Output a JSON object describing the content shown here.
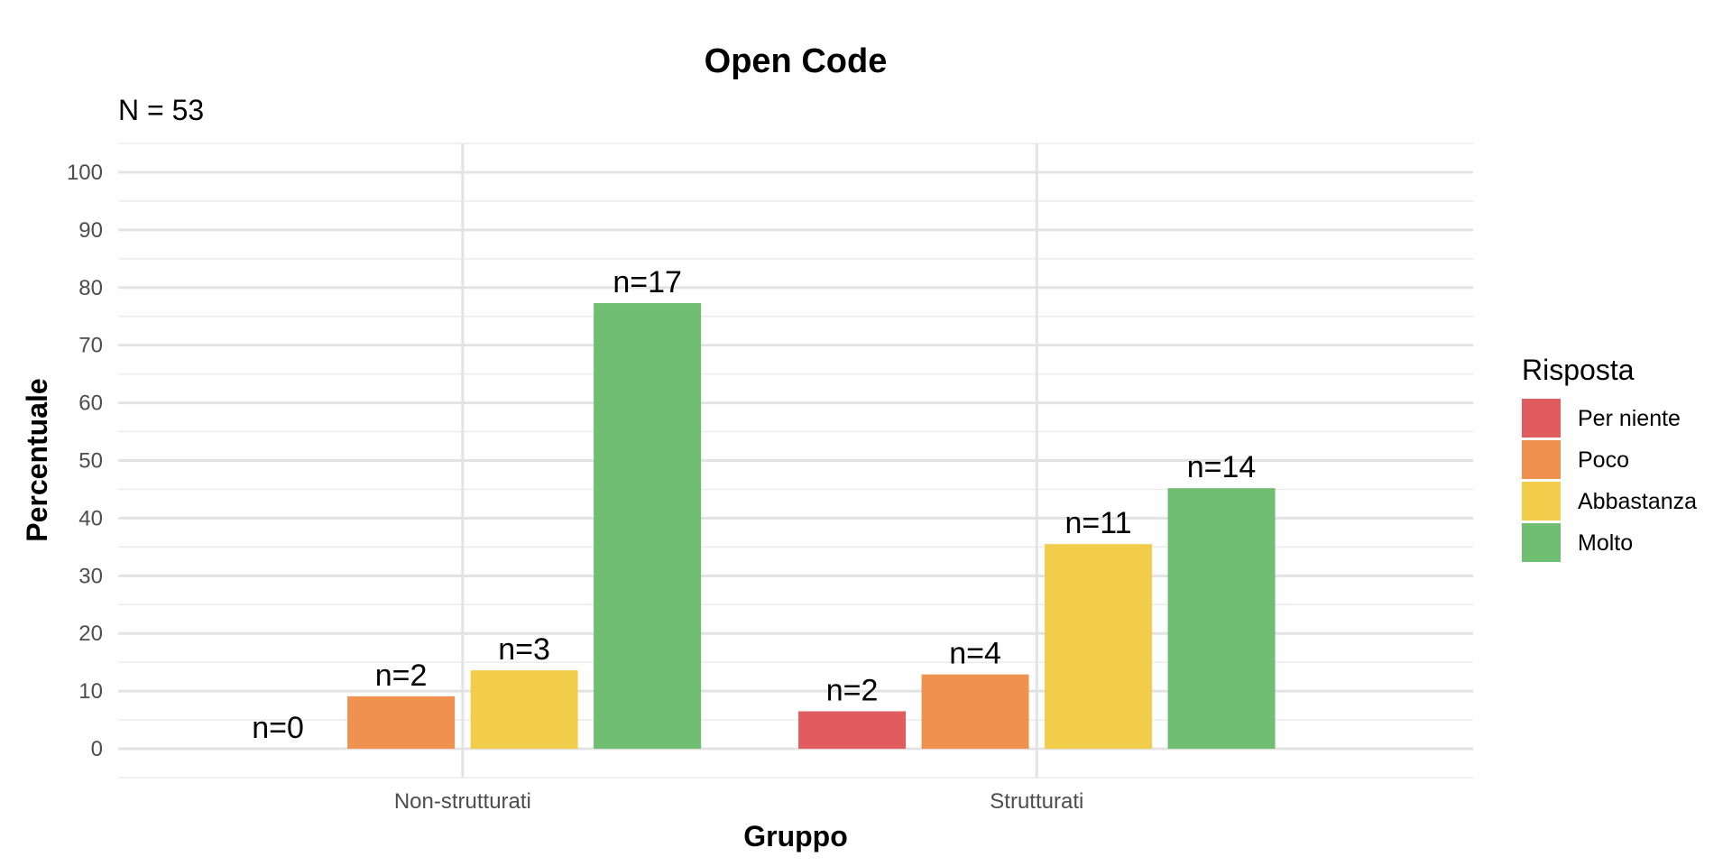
{
  "chart_data": {
    "type": "bar",
    "title": "Open Code",
    "subtitle": "N = 53",
    "xlabel": "Gruppo",
    "ylabel": "Percentuale",
    "ylim": [
      -5,
      105
    ],
    "yticks": [
      0,
      10,
      20,
      30,
      40,
      50,
      60,
      70,
      80,
      90,
      100
    ],
    "grid": true,
    "legend_position": "right",
    "legend_title": "Risposta",
    "categories": [
      "Non-strutturati",
      "Strutturati"
    ],
    "series": [
      {
        "name": "Per niente",
        "color": "#E05C5F",
        "values": [
          0,
          6.5
        ],
        "labels": [
          "n=0",
          "n=2"
        ]
      },
      {
        "name": "Poco",
        "color": "#F0924F",
        "values": [
          9.1,
          12.9
        ],
        "labels": [
          "n=2",
          "n=4"
        ]
      },
      {
        "name": "Abbastanza",
        "color": "#F2CD4B",
        "values": [
          13.6,
          35.5
        ],
        "labels": [
          "n=3",
          "n=11"
        ]
      },
      {
        "name": "Molto",
        "color": "#6FBE72",
        "values": [
          77.3,
          45.2
        ],
        "labels": [
          "n=17",
          "n=14"
        ]
      }
    ]
  }
}
